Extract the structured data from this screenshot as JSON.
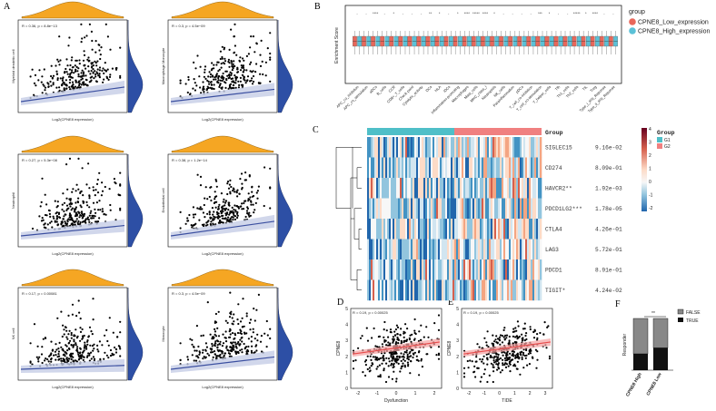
{
  "colors": {
    "density": "#f5a623",
    "density_right": "#2d4fa5",
    "regression": "#3b4fa0",
    "ci": "#c5cde6",
    "low": "#e8675a",
    "high": "#5bc1d7",
    "scatter_red": "#e74c4c",
    "heat_hi": "#b2182b",
    "heat_lo": "#2c7fb8",
    "g1": "#4fbfc8",
    "g2": "#f08080"
  },
  "panels": {
    "A": {
      "label": "A",
      "xlabel": "Log2(CPNE8 expression)",
      "plots": [
        {
          "ylabel": "Myeloid dendritic cell",
          "stat": "R = 0.36, p = 8.8e−13",
          "xlabel": "Log2(CPNE8 expression)",
          "slope": 0.45
        },
        {
          "ylabel": "Macrophage.Monocyte",
          "stat": "R = 0.3, p = 4.5e−09",
          "xlabel": "Log2(CPNE8 expression)",
          "slope": 0.38
        },
        {
          "ylabel": "Neutrophil",
          "stat": "R = 0.27, p = 5.3e−08",
          "xlabel": "Log2(CPNE8 expression)",
          "slope": 0.32
        },
        {
          "ylabel": "Endothelial cell",
          "stat": "R = 0.38, p = 1.2e−14",
          "xlabel": "Log2(CPNE8 expression)",
          "slope": 0.45
        },
        {
          "ylabel": "NK cell",
          "stat": "R = 0.17, p = 0.00081",
          "xlabel": "Log2(CPNE8 expression)",
          "slope": 0.12
        },
        {
          "ylabel": "Monocyte",
          "stat": "R = 0.3, p = 4.5e−09",
          "xlabel": "Log2(CPNE8 expression)",
          "slope": 0.38
        }
      ]
    },
    "B": {
      "label": "B",
      "ylabel": "Enrichment Score",
      "legend_title": "group",
      "legend": [
        "CPNE8_Low_expression",
        "CPNE8_High_expression"
      ],
      "categories": [
        "APC_co_inhibition",
        "APC_co_stimulation",
        "aDCs",
        "B_cells",
        "CCR",
        "CD8+_T_cells",
        "Check-point",
        "Cytolytic_activity",
        "DCs",
        "HLA",
        "iDCs",
        "Inflammation-promoting",
        "Macrophages",
        "Mast_cells",
        "MHC_class_I",
        "Neutrophils",
        "NK_cells",
        "Parainflammation",
        "pDCs",
        "T_cell_co-inhibition",
        "T_cell_co-stimulation",
        "T_helper_cells",
        "Tfh",
        "Th1_cells",
        "Th2_cells",
        "TIL",
        "Treg",
        "Type_I_IFN_Reponse",
        "Type_II_IFN_Reponse"
      ],
      "sig": [
        "-",
        "-",
        "****",
        "-",
        "*",
        "-",
        "-",
        "-",
        "**",
        "*",
        "-",
        "*",
        "****",
        "*****",
        "****",
        "*",
        "-",
        "-",
        "-",
        "-",
        "***",
        "*",
        "-",
        "-",
        "*****",
        "*",
        "****",
        "-",
        "-"
      ],
      "ylim": [
        0,
        1
      ]
    },
    "C": {
      "label": "C",
      "group_title": "Group",
      "legend_title": "Group",
      "legend": [
        "G1",
        "G2"
      ],
      "scale_ticks": [
        "4",
        "3",
        "2",
        "1",
        "0",
        "-1",
        "-2"
      ],
      "genes": [
        {
          "name": "SIGLEC15",
          "p": "9.16e-02"
        },
        {
          "name": "CD274",
          "p": "8.09e-01"
        },
        {
          "name": "HAVCR2**",
          "p": "1.92e-03"
        },
        {
          "name": "PDCD1LG2***",
          "p": "1.78e-05"
        },
        {
          "name": "CTLA4",
          "p": "4.26e-01"
        },
        {
          "name": "LAG3",
          "p": "5.72e-01"
        },
        {
          "name": "PDCD1",
          "p": "8.91e-01"
        },
        {
          "name": "TIGIT*",
          "p": "4.24e-02"
        }
      ]
    },
    "D": {
      "label": "D",
      "stat": "R = 0.19, p = 0.00025",
      "xlabel": "Dysfunction",
      "ylabel": "CPNE8",
      "xticks": [
        "-2",
        "-1",
        "0",
        "1",
        "2"
      ],
      "yticks": [
        "0",
        "1",
        "2",
        "3",
        "4",
        "5"
      ]
    },
    "E": {
      "label": "E",
      "stat": "R = 0.19, p = 0.00025",
      "xlabel": "TIDE",
      "ylabel": "CPNE8",
      "xticks": [
        "-2",
        "-1",
        "0",
        "1",
        "2",
        "3"
      ],
      "yticks": [
        "0",
        "1",
        "2",
        "3",
        "4",
        "5"
      ]
    },
    "F": {
      "label": "F",
      "ylabel": "Responder",
      "sig": "**",
      "categories": [
        "CPNE8 High",
        "CPNE8 Low"
      ],
      "legend": [
        "FALSE",
        "TRUE"
      ],
      "chart_data": {
        "type": "bar",
        "categories": [
          "CPNE8 High",
          "CPNE8 Low"
        ],
        "series": [
          {
            "name": "TRUE",
            "values": [
              60,
              82
            ]
          },
          {
            "name": "FALSE",
            "values": [
              130,
              108
            ]
          }
        ],
        "ylim": [
          0,
          200
        ]
      }
    }
  },
  "chart_data": [
    {
      "type": "scatter",
      "title": "",
      "xlabel": "Log2(CPNE8 expression)",
      "ylabel": "Myeloid dendritic cell",
      "annotation": "R = 0.36, p = 8.8e−13"
    },
    {
      "type": "scatter",
      "title": "",
      "xlabel": "Log2(CPNE8 expression)",
      "ylabel": "Macrophage.Monocyte",
      "annotation": "R = 0.3, p = 4.5e−09"
    },
    {
      "type": "scatter",
      "title": "",
      "xlabel": "Log2(CPNE8 expression)",
      "ylabel": "Neutrophil",
      "annotation": "R = 0.27, p = 5.3e−08"
    },
    {
      "type": "scatter",
      "title": "",
      "xlabel": "Log2(CPNE8 expression)",
      "ylabel": "Endothelial cell",
      "annotation": "R = 0.38, p = 1.2e−14"
    },
    {
      "type": "scatter",
      "title": "",
      "xlabel": "Log2(CPNE8 expression)",
      "ylabel": "NK cell",
      "annotation": "R = 0.17, p = 0.00081"
    },
    {
      "type": "scatter",
      "title": "",
      "xlabel": "Log2(CPNE8 expression)",
      "ylabel": "Monocyte",
      "annotation": "R = 0.3, p = 4.5e−09"
    },
    {
      "type": "bar",
      "title": "",
      "ylabel": "Enrichment Score",
      "legend_placement": "top-right",
      "series": [
        {
          "name": "CPNE8_Low_expression"
        },
        {
          "name": "CPNE8_High_expression"
        }
      ],
      "ylim": [
        0,
        1
      ]
    },
    {
      "type": "heatmap",
      "title": "",
      "rows": [
        "SIGLEC15",
        "CD274",
        "HAVCR2**",
        "PDCD1LG2***",
        "CTLA4",
        "LAG3",
        "PDCD1",
        "TIGIT*"
      ],
      "color_range": [
        -2,
        4
      ]
    },
    {
      "type": "scatter",
      "title": "",
      "xlabel": "Dysfunction",
      "ylabel": "CPNE8",
      "annotation": "R = 0.19, p = 0.00025",
      "xlim": [
        -2,
        2.5
      ],
      "ylim": [
        0,
        5
      ]
    },
    {
      "type": "scatter",
      "title": "",
      "xlabel": "TIDE",
      "ylabel": "CPNE8",
      "annotation": "R = 0.19, p = 0.00025",
      "xlim": [
        -2.5,
        3
      ],
      "ylim": [
        0,
        5
      ]
    },
    {
      "type": "bar",
      "title": "",
      "ylabel": "Responder",
      "categories": [
        "CPNE8 High",
        "CPNE8 Low"
      ],
      "series": [
        {
          "name": "TRUE",
          "values": [
            60,
            82
          ]
        },
        {
          "name": "FALSE",
          "values": [
            130,
            108
          ]
        }
      ],
      "ylim": [
        0,
        200
      ]
    }
  ]
}
